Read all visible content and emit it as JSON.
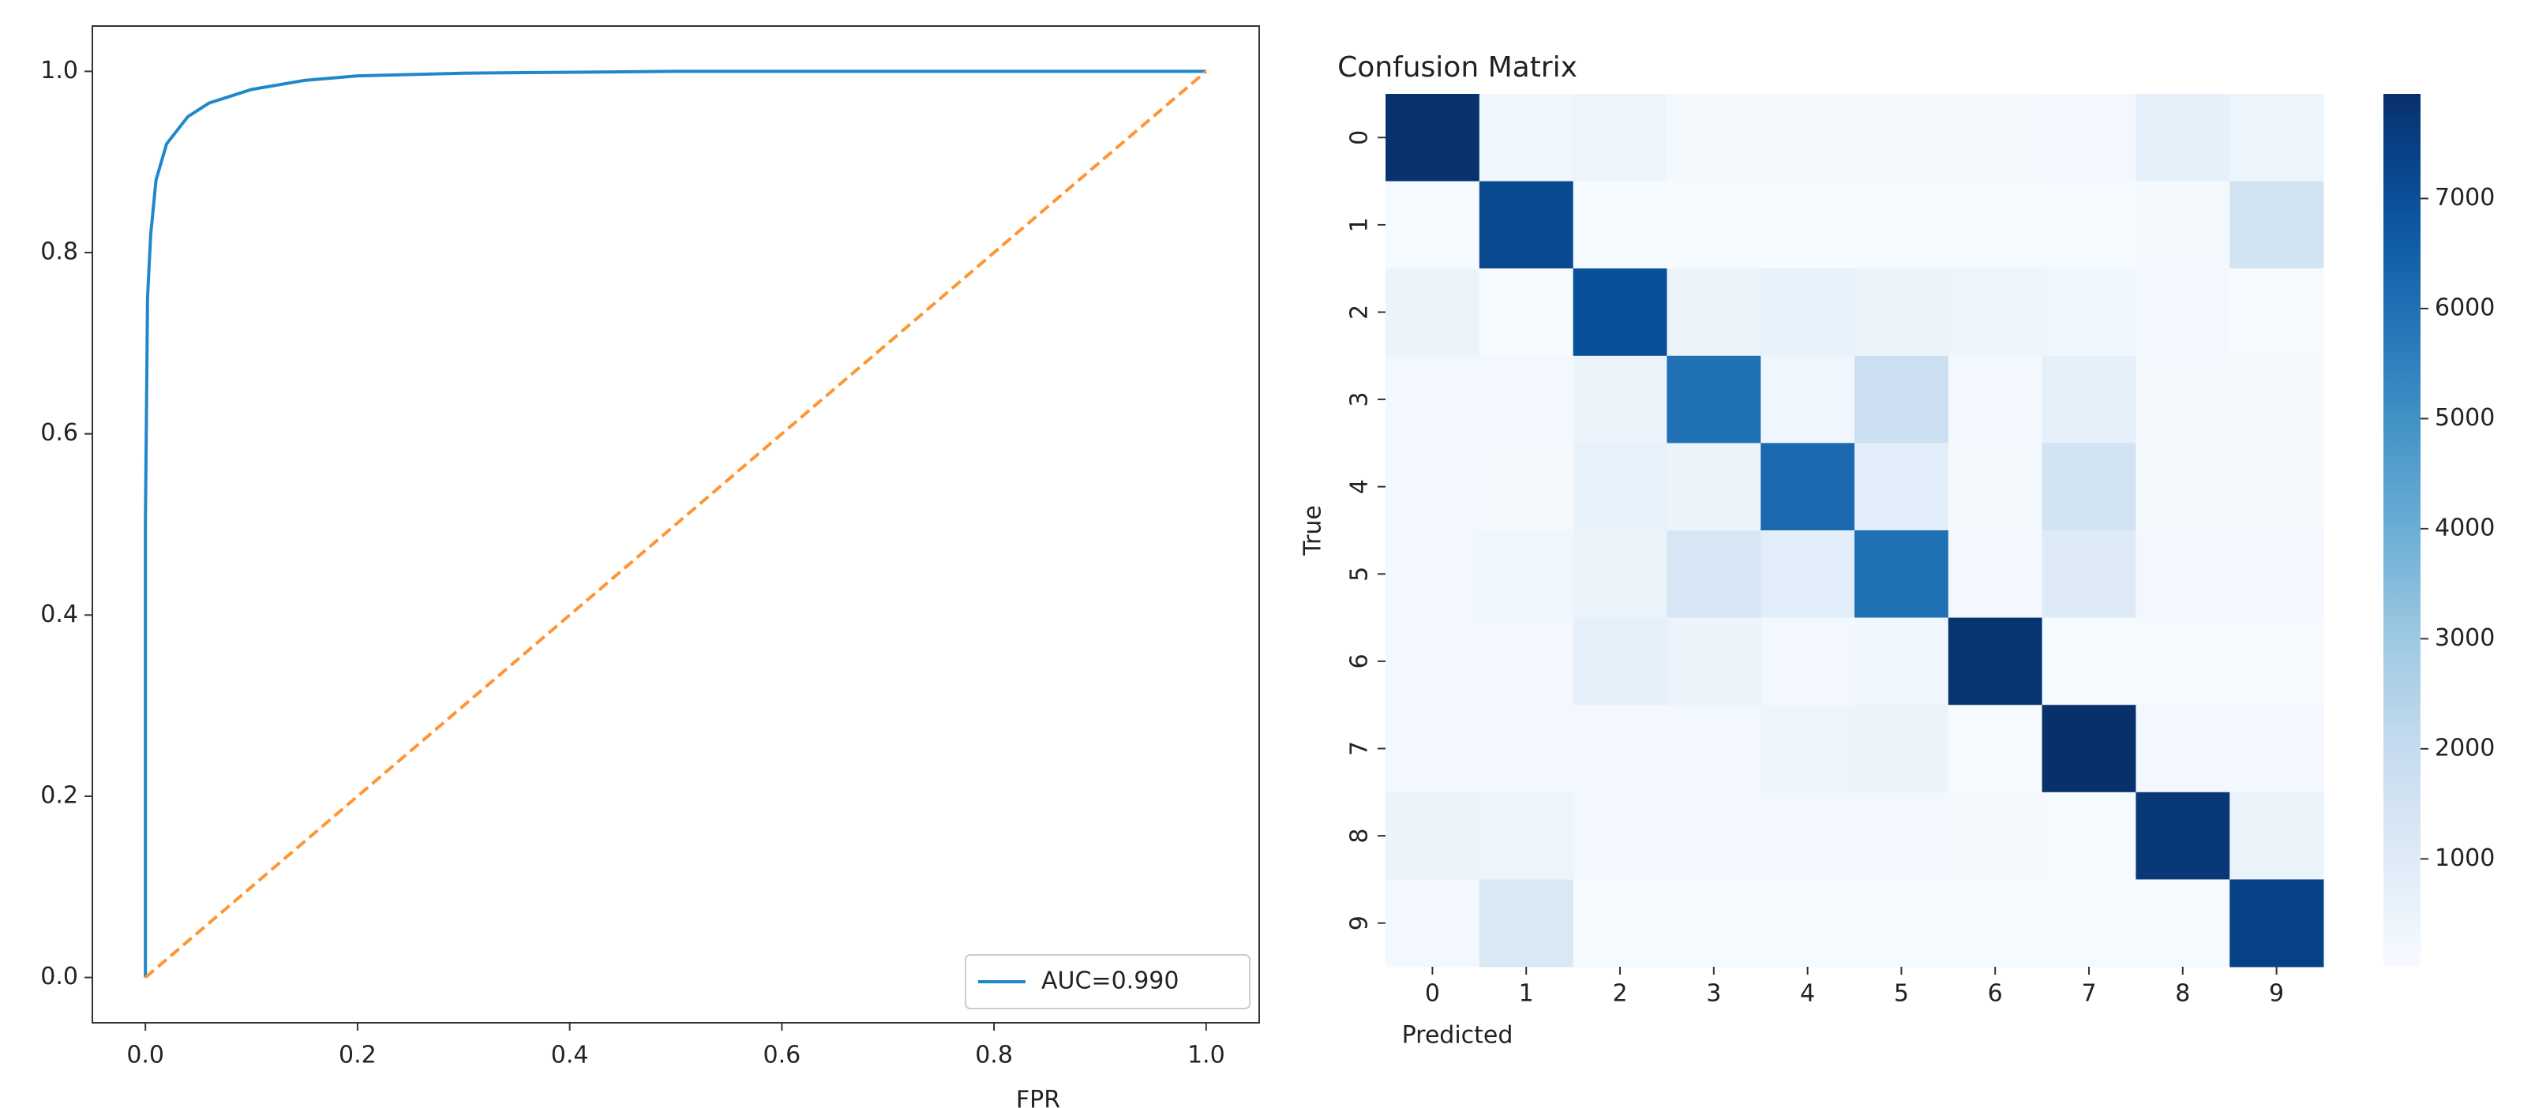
{
  "chart_data": [
    {
      "type": "line",
      "x_label": "FPR",
      "series": [
        {
          "name": "AUC=0.990",
          "color": "#1f88c8",
          "dash": false,
          "x": [
            0,
            0,
            0.002,
            0.005,
            0.01,
            0.02,
            0.04,
            0.06,
            0.1,
            0.15,
            0.2,
            0.3,
            0.5,
            1
          ],
          "values": [
            0,
            0.5,
            0.75,
            0.82,
            0.88,
            0.92,
            0.95,
            0.965,
            0.98,
            0.99,
            0.995,
            0.998,
            1,
            1
          ]
        },
        {
          "color": "#ff9533",
          "dash": true,
          "x": [
            0,
            1
          ],
          "values": [
            0,
            1
          ]
        }
      ],
      "xlim": [
        -0.05,
        1.05
      ],
      "ylim": [
        -0.05,
        1.05
      ],
      "xticks": [
        {
          "value": 0,
          "label": "0.0"
        },
        {
          "value": 0.2,
          "label": "0.2"
        },
        {
          "value": 0.4,
          "label": "0.4"
        },
        {
          "value": 0.6,
          "label": "0.6"
        },
        {
          "value": 0.8,
          "label": "0.8"
        },
        {
          "value": 1,
          "label": "1.0"
        }
      ],
      "yticks": [
        {
          "value": 0,
          "label": "0.0"
        },
        {
          "value": 0.2,
          "label": "0.2"
        },
        {
          "value": 0.4,
          "label": "0.4"
        },
        {
          "value": 0.6,
          "label": "0.6"
        },
        {
          "value": 0.8,
          "label": "0.8"
        },
        {
          "value": 1,
          "label": "1.0"
        }
      ],
      "legend": "lower right"
    },
    {
      "type": "heatmap",
      "title": "Confusion Matrix",
      "x_label": "Predicted",
      "y_label": "True",
      "categories": [
        "0",
        "1",
        "2",
        "3",
        "4",
        "5",
        "6",
        "7",
        "8",
        "9"
      ],
      "y_categories": [
        "0",
        "1",
        "2",
        "3",
        "4",
        "5",
        "6",
        "7",
        "8",
        "9"
      ],
      "colormap": "Blues",
      "vmin": 20,
      "vmax": 7950,
      "colorbar_ticks": [
        1000,
        2000,
        3000,
        4000,
        5000,
        6000,
        7000
      ],
      "z": [
        [
          7900,
          300,
          400,
          150,
          150,
          150,
          150,
          200,
          700,
          400
        ],
        [
          100,
          7200,
          100,
          100,
          100,
          100,
          100,
          100,
          150,
          1500
        ],
        [
          500,
          100,
          7000,
          500,
          600,
          500,
          400,
          300,
          200,
          100
        ],
        [
          200,
          200,
          500,
          6000,
          300,
          1700,
          200,
          700,
          150,
          150
        ],
        [
          200,
          150,
          600,
          500,
          6200,
          900,
          150,
          1500,
          150,
          150
        ],
        [
          200,
          300,
          500,
          1300,
          900,
          6000,
          200,
          1000,
          200,
          200
        ],
        [
          200,
          200,
          700,
          500,
          200,
          300,
          7800,
          100,
          100,
          100
        ],
        [
          200,
          200,
          200,
          200,
          400,
          500,
          100,
          7950,
          200,
          200
        ],
        [
          500,
          400,
          200,
          200,
          200,
          200,
          150,
          100,
          7700,
          500
        ],
        [
          200,
          1200,
          100,
          100,
          100,
          100,
          100,
          100,
          100,
          7400
        ]
      ]
    }
  ]
}
